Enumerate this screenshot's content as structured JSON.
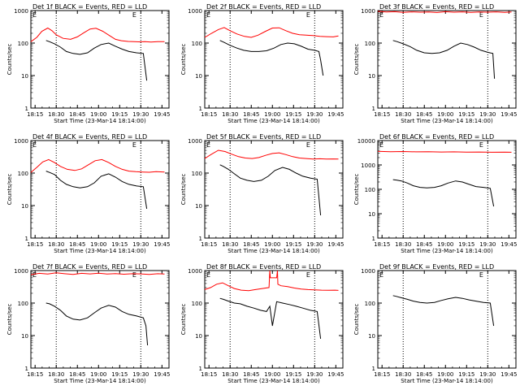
{
  "chart_data": [
    {
      "type": "line",
      "title": "Det 1f BLACK = Events, RED = LLD",
      "xlabel": "Start Time (23-Mar-14 18:14:00)",
      "ylabel": "Counts/sec",
      "yscale": "log",
      "ylim": [
        1,
        1000
      ],
      "xticks": [
        "18:15",
        "18:30",
        "18:45",
        "19:00",
        "19:15",
        "19:30",
        "19:45"
      ],
      "yticks": [
        "1",
        "10",
        "100",
        "1000"
      ],
      "markers": [
        "E",
        "E"
      ],
      "series": [
        {
          "color": "#ff0000",
          "x": [
            18.2,
            18.27,
            18.33,
            18.4,
            18.45,
            18.5,
            18.58,
            18.67,
            18.75,
            18.83,
            18.9,
            18.97,
            19.05,
            19.13,
            19.2,
            19.27,
            19.35,
            19.42,
            19.48,
            19.55,
            19.62,
            19.7,
            19.78
          ],
          "y": [
            110,
            150,
            230,
            290,
            240,
            180,
            140,
            130,
            155,
            210,
            270,
            285,
            230,
            170,
            130,
            118,
            112,
            110,
            109,
            110,
            108,
            110,
            110
          ]
        },
        {
          "color": "#000000",
          "x": [
            18.38,
            18.42,
            18.48,
            18.55,
            18.62,
            18.7,
            18.78,
            18.87,
            18.95,
            19.03,
            19.12,
            19.2,
            19.28,
            19.36,
            19.45,
            19.53,
            19.57
          ],
          "y": [
            120,
            110,
            95,
            75,
            55,
            48,
            45,
            50,
            70,
            90,
            100,
            80,
            65,
            55,
            50,
            48,
            7
          ]
        }
      ]
    },
    {
      "type": "line",
      "title": "Det 2f BLACK = Events, RED = LLD",
      "xlabel": "Start Time (23-Mar-14 18:14:00)",
      "ylabel": "Counts/sec",
      "yscale": "log",
      "ylim": [
        1,
        1000
      ],
      "xticks": [
        "18:15",
        "18:30",
        "18:45",
        "19:00",
        "19:15",
        "19:30",
        "19:45"
      ],
      "yticks": [
        "1",
        "10",
        "100",
        "1000"
      ],
      "markers": [
        "E",
        "E"
      ],
      "series": [
        {
          "color": "#ff0000",
          "x": [
            18.2,
            18.28,
            18.36,
            18.43,
            18.5,
            18.58,
            18.67,
            18.75,
            18.83,
            18.92,
            19.0,
            19.08,
            19.16,
            19.24,
            19.32,
            19.4,
            19.48,
            19.56,
            19.64,
            19.72,
            19.78
          ],
          "y": [
            150,
            200,
            260,
            300,
            240,
            190,
            160,
            150,
            175,
            230,
            290,
            295,
            240,
            200,
            180,
            175,
            170,
            160,
            158,
            155,
            165
          ]
        },
        {
          "color": "#000000",
          "x": [
            18.38,
            18.43,
            18.5,
            18.58,
            18.66,
            18.75,
            18.84,
            18.93,
            19.02,
            19.1,
            19.18,
            19.26,
            19.34,
            19.42,
            19.5,
            19.55,
            19.57,
            19.6
          ],
          "y": [
            120,
            105,
            85,
            70,
            60,
            55,
            55,
            58,
            70,
            90,
            100,
            95,
            80,
            65,
            60,
            55,
            30,
            10
          ]
        }
      ]
    },
    {
      "type": "line",
      "title": "Det 3f BLACK = Events, RED = LLD",
      "xlabel": "Start Time (23-Mar-14 18:14:00)",
      "ylabel": "Counts/sec",
      "yscale": "log",
      "ylim": [
        1,
        1000
      ],
      "xticks": [
        "18:15",
        "18:30",
        "18:45",
        "19:00",
        "19:15",
        "19:30",
        "19:45"
      ],
      "yticks": [
        "1",
        "10",
        "100",
        "1000"
      ],
      "markers": [
        "E",
        "E"
      ],
      "series": [
        {
          "color": "#ff0000",
          "x": [
            18.2,
            18.3,
            18.4,
            18.5,
            18.6,
            18.7,
            18.8,
            18.9,
            19.0,
            19.1,
            19.2,
            19.3,
            19.4,
            19.5,
            19.6,
            19.7,
            19.78
          ],
          "y": [
            950,
            900,
            920,
            880,
            910,
            890,
            900,
            870,
            920,
            890,
            910,
            880,
            900,
            890,
            910,
            880,
            900
          ]
        },
        {
          "color": "#000000",
          "x": [
            18.38,
            18.43,
            18.5,
            18.58,
            18.66,
            18.75,
            18.84,
            18.93,
            19.02,
            19.1,
            19.18,
            19.26,
            19.34,
            19.42,
            19.5,
            19.56,
            19.58
          ],
          "y": [
            120,
            110,
            95,
            78,
            60,
            50,
            48,
            50,
            60,
            80,
            100,
            90,
            75,
            60,
            52,
            48,
            8
          ]
        }
      ]
    },
    {
      "type": "line",
      "title": "Det 4f BLACK = Events, RED = LLD",
      "xlabel": "Start Time (23-Mar-14 18:14:00)",
      "ylabel": "Counts/sec",
      "yscale": "log",
      "ylim": [
        1,
        1000
      ],
      "xticks": [
        "18:15",
        "18:30",
        "18:45",
        "19:00",
        "19:15",
        "19:30",
        "19:45"
      ],
      "yticks": [
        "1",
        "10",
        "100",
        "1000"
      ],
      "markers": [
        "E",
        "E"
      ],
      "series": [
        {
          "color": "#ff0000",
          "x": [
            18.2,
            18.27,
            18.34,
            18.41,
            18.48,
            18.55,
            18.63,
            18.72,
            18.8,
            18.88,
            18.96,
            19.04,
            19.12,
            19.2,
            19.28,
            19.36,
            19.44,
            19.52,
            19.6,
            19.68,
            19.78
          ],
          "y": [
            105,
            150,
            220,
            260,
            210,
            160,
            130,
            120,
            135,
            180,
            240,
            260,
            210,
            160,
            130,
            115,
            110,
            108,
            106,
            110,
            108
          ]
        },
        {
          "color": "#000000",
          "x": [
            18.38,
            18.42,
            18.48,
            18.55,
            18.62,
            18.7,
            18.78,
            18.87,
            18.95,
            19.03,
            19.12,
            19.2,
            19.28,
            19.36,
            19.45,
            19.53,
            19.57
          ],
          "y": [
            115,
            105,
            90,
            60,
            45,
            38,
            35,
            38,
            50,
            80,
            95,
            75,
            55,
            45,
            40,
            38,
            8
          ]
        }
      ]
    },
    {
      "type": "line",
      "title": "Det 5f BLACK = Events, RED = LLD",
      "xlabel": "Start Time (23-Mar-14 18:14:00)",
      "ylabel": "Counts/sec",
      "yscale": "log",
      "ylim": [
        1,
        1000
      ],
      "xticks": [
        "18:15",
        "18:30",
        "18:45",
        "19:00",
        "19:15",
        "19:30",
        "19:45"
      ],
      "yticks": [
        "1",
        "10",
        "100",
        "1000"
      ],
      "markers": [
        "E",
        "E"
      ],
      "series": [
        {
          "color": "#ff0000",
          "x": [
            18.2,
            18.28,
            18.36,
            18.44,
            18.52,
            18.6,
            18.68,
            18.76,
            18.84,
            18.92,
            19.0,
            19.08,
            19.16,
            19.24,
            19.32,
            19.4,
            19.48,
            19.56,
            19.64,
            19.72,
            19.78
          ],
          "y": [
            280,
            380,
            500,
            460,
            380,
            320,
            290,
            280,
            300,
            350,
            400,
            420,
            370,
            320,
            290,
            280,
            270,
            275,
            270,
            272,
            270
          ]
        },
        {
          "color": "#000000",
          "x": [
            18.38,
            18.42,
            18.48,
            18.55,
            18.62,
            18.7,
            18.78,
            18.87,
            18.95,
            19.03,
            19.12,
            19.2,
            19.28,
            19.36,
            19.45,
            19.53,
            19.57
          ],
          "y": [
            180,
            160,
            130,
            95,
            70,
            60,
            55,
            60,
            80,
            120,
            150,
            130,
            100,
            80,
            70,
            65,
            5
          ]
        }
      ]
    },
    {
      "type": "line",
      "title": "Det 6f BLACK = Events, RED = LLD",
      "xlabel": "Start Time (23-Mar-14 18:14:00)",
      "ylabel": "Counts/sec",
      "yscale": "log",
      "ylim": [
        1,
        10000
      ],
      "xticks": [
        "18:15",
        "18:30",
        "18:45",
        "19:00",
        "19:15",
        "19:30",
        "19:45"
      ],
      "yticks": [
        "1",
        "10",
        "100",
        "1000",
        "10000"
      ],
      "markers": [
        "E",
        "E"
      ],
      "series": [
        {
          "color": "#ff0000",
          "x": [
            18.2,
            18.35,
            18.5,
            18.65,
            18.8,
            18.95,
            19.1,
            19.25,
            19.4,
            19.55,
            19.7,
            19.78
          ],
          "y": [
            3600,
            3500,
            3550,
            3450,
            3500,
            3400,
            3450,
            3350,
            3400,
            3300,
            3350,
            3300
          ]
        },
        {
          "color": "#000000",
          "x": [
            18.38,
            18.42,
            18.48,
            18.55,
            18.62,
            18.7,
            18.78,
            18.87,
            18.95,
            19.03,
            19.12,
            19.2,
            19.28,
            19.36,
            19.45,
            19.53,
            19.57
          ],
          "y": [
            250,
            240,
            220,
            180,
            140,
            120,
            115,
            120,
            140,
            180,
            220,
            200,
            160,
            130,
            120,
            110,
            20
          ]
        }
      ]
    },
    {
      "type": "line",
      "title": "Det 7f BLACK = Events, RED = LLD",
      "xlabel": "Start Time (23-Mar-14 18:14:00)",
      "ylabel": "Counts/sec",
      "yscale": "log",
      "ylim": [
        1,
        1000
      ],
      "xticks": [
        "18:15",
        "18:30",
        "18:45",
        "19:00",
        "19:15",
        "19:30",
        "19:45"
      ],
      "yticks": [
        "1",
        "10",
        "100",
        "1000"
      ],
      "markers": [
        "E",
        "E"
      ],
      "series": [
        {
          "color": "#ff0000",
          "x": [
            18.2,
            18.3,
            18.4,
            18.5,
            18.6,
            18.7,
            18.8,
            18.9,
            19.0,
            19.1,
            19.2,
            19.3,
            19.4,
            19.5,
            19.6,
            19.7,
            19.78
          ],
          "y": [
            750,
            820,
            780,
            850,
            800,
            760,
            820,
            790,
            830,
            780,
            810,
            770,
            800,
            790,
            760,
            800,
            780
          ]
        },
        {
          "color": "#000000",
          "x": [
            18.38,
            18.42,
            18.48,
            18.55,
            18.62,
            18.7,
            18.78,
            18.87,
            18.95,
            19.03,
            19.12,
            19.2,
            19.28,
            19.36,
            19.45,
            19.53,
            19.56,
            19.58
          ],
          "y": [
            100,
            95,
            80,
            60,
            40,
            32,
            30,
            35,
            50,
            70,
            85,
            75,
            55,
            45,
            40,
            35,
            20,
            5
          ]
        }
      ]
    },
    {
      "type": "line",
      "title": "Det 8f BLACK = Events, RED = LLD",
      "xlabel": "Start Time (23-Mar-14 18:14:00)",
      "ylabel": "Counts/sec",
      "yscale": "log",
      "ylim": [
        1,
        1000
      ],
      "xticks": [
        "18:15",
        "18:30",
        "18:45",
        "19:00",
        "19:15",
        "19:30",
        "19:45"
      ],
      "yticks": [
        "1",
        "10",
        "100",
        "1000"
      ],
      "markers": [
        "E",
        "E"
      ],
      "series": [
        {
          "color": "#ff0000",
          "x": [
            18.2,
            18.27,
            18.34,
            18.41,
            18.48,
            18.55,
            18.63,
            18.72,
            18.8,
            18.88,
            18.96,
            18.97,
            18.975,
            19.05,
            19.06,
            19.065,
            19.1,
            19.18,
            19.26,
            19.34,
            19.42,
            19.5,
            19.58,
            19.66,
            19.74,
            19.78
          ],
          "y": [
            260,
            300,
            380,
            420,
            340,
            280,
            250,
            240,
            260,
            280,
            300,
            1000,
            600,
            600,
            1000,
            380,
            340,
            320,
            290,
            270,
            260,
            255,
            250,
            248,
            250,
            245
          ]
        },
        {
          "color": "#000000",
          "x": [
            18.38,
            18.42,
            18.48,
            18.55,
            18.62,
            18.7,
            18.78,
            18.86,
            18.93,
            18.97,
            19.0,
            19.05,
            19.12,
            19.2,
            19.28,
            19.36,
            19.45,
            19.53,
            19.57
          ],
          "y": [
            140,
            130,
            115,
            100,
            95,
            80,
            70,
            60,
            55,
            80,
            20,
            110,
            100,
            90,
            80,
            70,
            60,
            55,
            8
          ]
        }
      ]
    },
    {
      "type": "line",
      "title": "Det 9f BLACK = Events, RED = LLD",
      "xlabel": "Start Time (23-Mar-14 18:14:00)",
      "ylabel": "Counts/sec",
      "yscale": "log",
      "ylim": [
        1,
        1000
      ],
      "xticks": [
        "18:15",
        "18:30",
        "18:45",
        "19:00",
        "19:15",
        "19:30",
        "19:45"
      ],
      "yticks": [
        "1",
        "10",
        "100",
        "1000"
      ],
      "markers": [
        "E",
        "E"
      ],
      "series": [
        {
          "color": "#000000",
          "x": [
            18.38,
            18.42,
            18.48,
            18.55,
            18.62,
            18.7,
            18.78,
            18.87,
            18.95,
            19.03,
            19.12,
            19.2,
            19.28,
            19.36,
            19.45,
            19.53,
            19.57
          ],
          "y": [
            170,
            160,
            145,
            130,
            115,
            105,
            100,
            105,
            120,
            135,
            150,
            140,
            125,
            115,
            105,
            100,
            20
          ]
        }
      ]
    }
  ]
}
